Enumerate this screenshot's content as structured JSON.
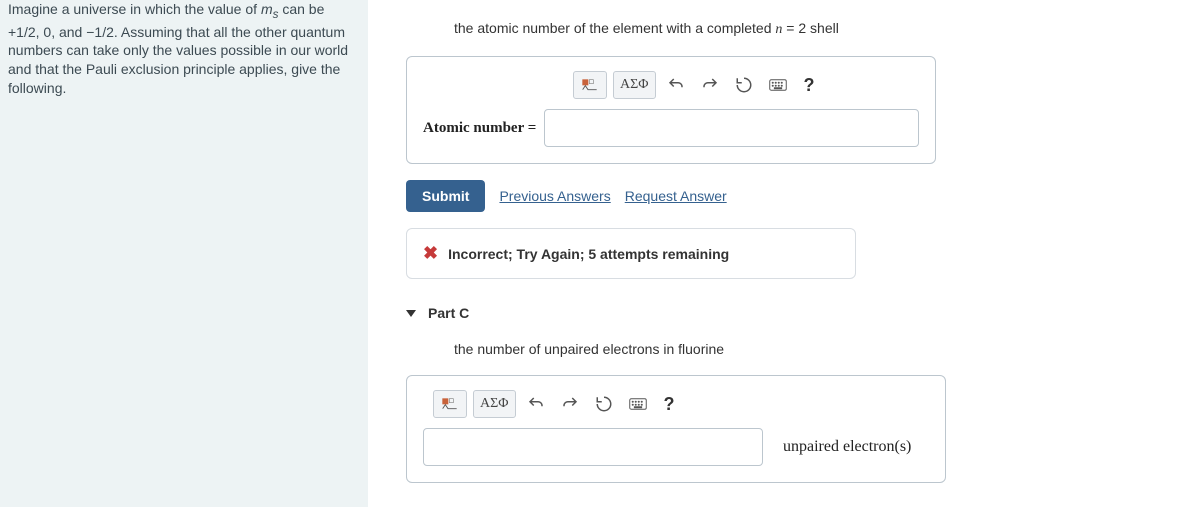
{
  "sidebar": {
    "text_html": "Imagine a universe in which the value of <em>m<sub>s</sub></em> can be +1/2, 0, and −1/2. Assuming that all the other quantum numbers can take only the values possible in our world and that the Pauli exclusion principle applies, give the following."
  },
  "partB": {
    "prompt_prefix": "the atomic number of the element with a completed ",
    "prompt_var": "n",
    "prompt_eq": " = 2 shell",
    "input_label": "Atomic number =",
    "value": "",
    "toolbar": {
      "greek": "ΑΣΦ",
      "help": "?"
    },
    "submit": "Submit",
    "prev": "Previous Answers",
    "request": "Request Answer",
    "feedback": "Incorrect; Try Again; 5 attempts remaining"
  },
  "partC": {
    "title": "Part C",
    "prompt": "the number of unpaired electrons in fluorine",
    "toolbar": {
      "greek": "ΑΣΦ",
      "help": "?"
    },
    "value": "",
    "unit": "unpaired electron(s)"
  },
  "colors": {
    "link": "#35618f",
    "error": "#c63a3a",
    "border": "#bcc6ce",
    "sidebar_bg": "#edf3f4"
  }
}
